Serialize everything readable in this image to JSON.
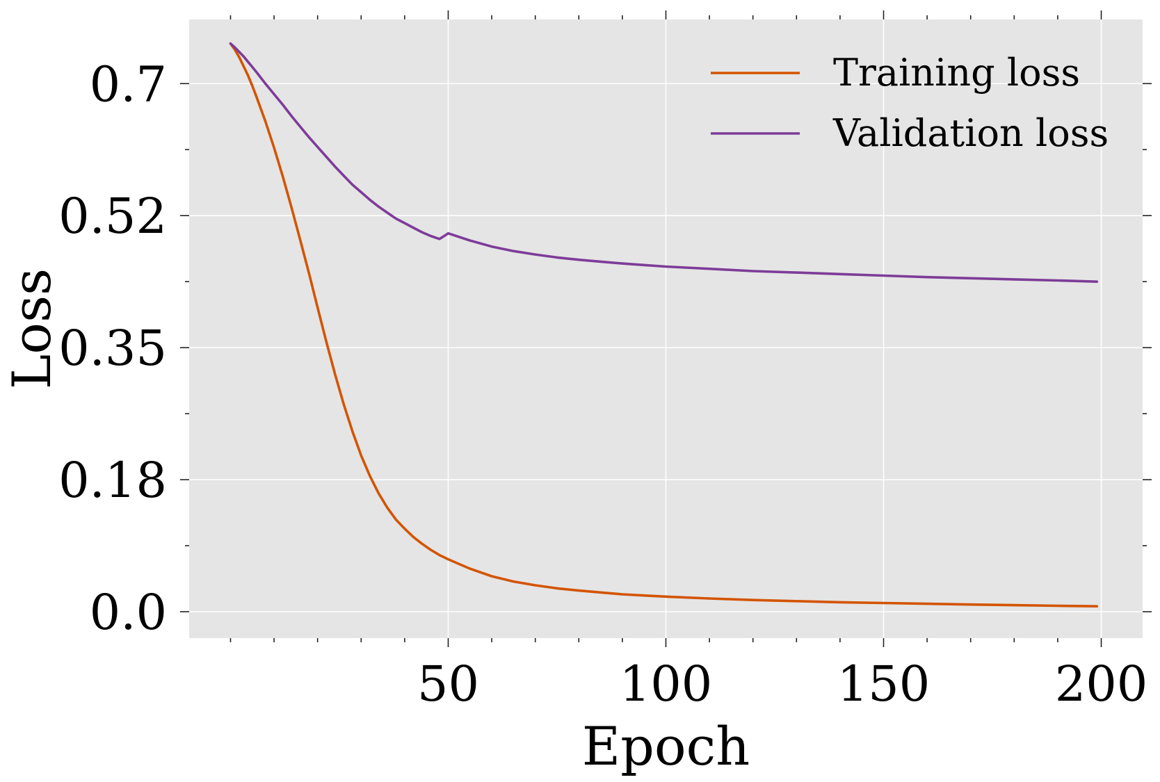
{
  "chart_data": {
    "type": "line",
    "title": "",
    "xlabel": "Epoch",
    "ylabel": "Loss",
    "xlim": [
      -9.5,
      209.5
    ],
    "ylim": [
      -0.035,
      0.785
    ],
    "xticks": [
      50,
      100,
      150,
      200
    ],
    "xtick_labels": [
      "50",
      "100",
      "150",
      "200"
    ],
    "xtick_minor": [
      0,
      10,
      20,
      30,
      40,
      60,
      70,
      80,
      90,
      110,
      120,
      130,
      140,
      160,
      170,
      180,
      190
    ],
    "yticks": [
      0.0,
      0.175,
      0.35,
      0.525,
      0.7
    ],
    "ytick_labels": [
      "0.0",
      "0.18",
      "0.35",
      "0.52",
      "0.7"
    ],
    "ytick_minor": [
      0.0875,
      0.2625,
      0.4375,
      0.6125
    ],
    "grid": true,
    "legend_position": "top-right",
    "background": "#e5e5e5",
    "x": [
      0,
      1,
      2,
      3,
      4,
      5,
      6,
      8,
      10,
      12,
      14,
      16,
      18,
      20,
      22,
      24,
      26,
      28,
      30,
      32,
      34,
      36,
      38,
      40,
      42,
      44,
      46,
      48,
      50,
      55,
      60,
      65,
      70,
      75,
      80,
      85,
      90,
      95,
      100,
      110,
      120,
      130,
      140,
      150,
      160,
      170,
      180,
      190,
      199
    ],
    "series": [
      {
        "name": "Training loss",
        "color": "#d35400",
        "values": [
          0.753,
          0.745,
          0.735,
          0.723,
          0.711,
          0.697,
          0.682,
          0.65,
          0.615,
          0.577,
          0.536,
          0.493,
          0.449,
          0.403,
          0.358,
          0.315,
          0.275,
          0.239,
          0.207,
          0.18,
          0.157,
          0.138,
          0.122,
          0.11,
          0.099,
          0.09,
          0.082,
          0.075,
          0.0695,
          0.057,
          0.047,
          0.04,
          0.035,
          0.031,
          0.028,
          0.0255,
          0.023,
          0.0215,
          0.02,
          0.0175,
          0.0155,
          0.014,
          0.0125,
          0.0115,
          0.0105,
          0.0095,
          0.0087,
          0.0078,
          0.0072
        ]
      },
      {
        "name": "Validation loss",
        "color": "#7d3c98",
        "values": [
          0.753,
          0.748,
          0.742,
          0.736,
          0.729,
          0.722,
          0.715,
          0.7,
          0.686,
          0.672,
          0.657,
          0.643,
          0.629,
          0.616,
          0.603,
          0.59,
          0.578,
          0.566,
          0.556,
          0.546,
          0.537,
          0.529,
          0.521,
          0.515,
          0.509,
          0.503,
          0.498,
          0.494,
          0.5015,
          0.492,
          0.484,
          0.478,
          0.4735,
          0.4695,
          0.4665,
          0.464,
          0.4615,
          0.4595,
          0.4575,
          0.4545,
          0.4515,
          0.4495,
          0.4475,
          0.4455,
          0.4435,
          0.442,
          0.4405,
          0.439,
          0.4375
        ]
      }
    ]
  }
}
